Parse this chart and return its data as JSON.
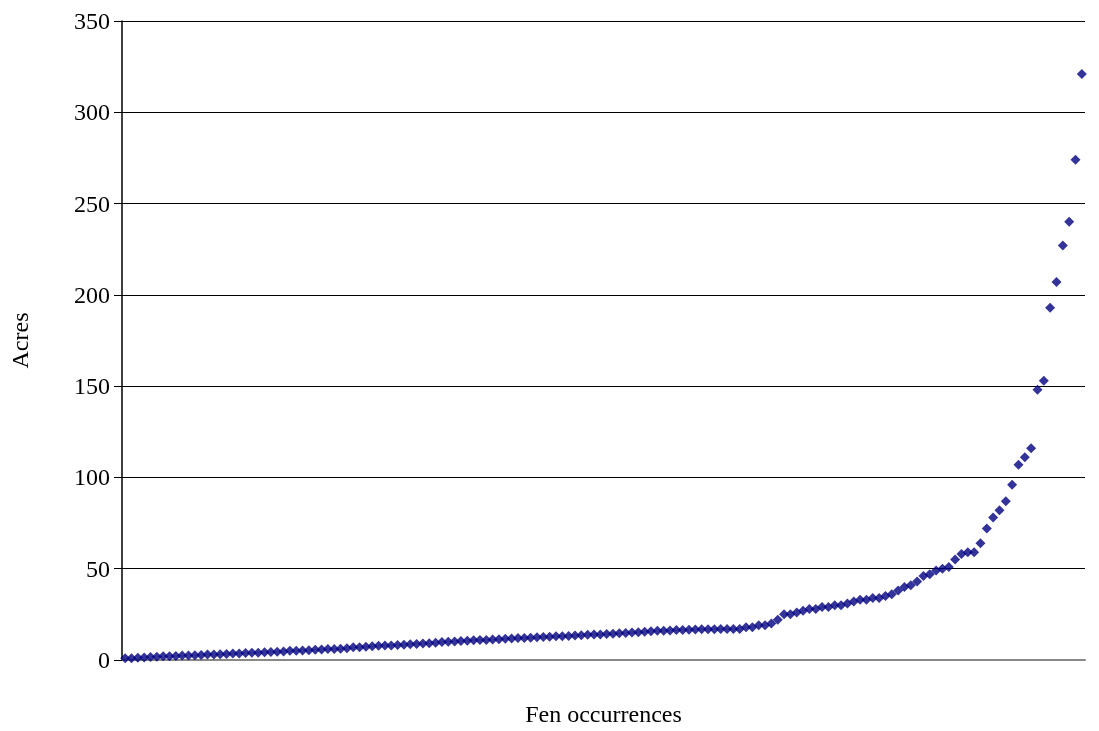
{
  "chart_data": {
    "type": "scatter",
    "xlabel": "Fen occurrences",
    "ylabel": "Acres",
    "categories": [
      null,
      null,
      null,
      null,
      null,
      null,
      null,
      null,
      null,
      null,
      null,
      null,
      null,
      null,
      null,
      null,
      null,
      null,
      null,
      null,
      null,
      null,
      null,
      null,
      null,
      null,
      null,
      null,
      null,
      null,
      null,
      null,
      null,
      null,
      null,
      null,
      null,
      null,
      null,
      null,
      null,
      null,
      null,
      null,
      null,
      null,
      null,
      null,
      null,
      null,
      null,
      null,
      null,
      null,
      null,
      null,
      null,
      null,
      null,
      null,
      null,
      null,
      null,
      null,
      null,
      null,
      null,
      null,
      null,
      null,
      null,
      null,
      null,
      null,
      null,
      null,
      null,
      null,
      null,
      null,
      null,
      null,
      null,
      null,
      null,
      null,
      null,
      null,
      null,
      null,
      null,
      null,
      null,
      null,
      null,
      null,
      null,
      null,
      null,
      null,
      null,
      null,
      null,
      null,
      null,
      null,
      null,
      null,
      null,
      null,
      null,
      null,
      null,
      null,
      null,
      null,
      null,
      null,
      null,
      null,
      null,
      null,
      null,
      null,
      null,
      null,
      null,
      null,
      null,
      null,
      null,
      null,
      null,
      null,
      null,
      null,
      null,
      null,
      null,
      null,
      null,
      null,
      null,
      null,
      null,
      null,
      null,
      null,
      null,
      null,
      null,
      null
    ],
    "series": [
      {
        "color": "#000080",
        "values": [
          1,
          1,
          1.2,
          1.4,
          1.6,
          1.8,
          2,
          2,
          2.2,
          2.4,
          2.5,
          2.6,
          2.8,
          3,
          3,
          3.2,
          3.3,
          3.5,
          3.6,
          3.8,
          4,
          4,
          4.2,
          4.4,
          4.5,
          4.7,
          5,
          5,
          5.2,
          5.4,
          5.6,
          5.8,
          6,
          6,
          6.2,
          6.5,
          7,
          7,
          7.2,
          7.5,
          7.8,
          8,
          8,
          8.2,
          8.4,
          8.6,
          8.8,
          9,
          9.2,
          9.5,
          9.8,
          10,
          10.2,
          10.4,
          10.6,
          10.8,
          11,
          11,
          11.2,
          11.4,
          11.6,
          11.8,
          12,
          12,
          12.2,
          12.4,
          12.6,
          12.8,
          13,
          13,
          13.2,
          13.4,
          13.6,
          13.8,
          14,
          14,
          14.2,
          14.4,
          14.6,
          14.8,
          15,
          15.2,
          15.5,
          15.8,
          16,
          16,
          16.2,
          16.4,
          16.5,
          16.6,
          16.7,
          16.8,
          16.8,
          16.9,
          17,
          17,
          17,
          17,
          18,
          18,
          19,
          19,
          20,
          22,
          25,
          25,
          26,
          27,
          28,
          28,
          29,
          29,
          30,
          30,
          31,
          32,
          33,
          33,
          34,
          34,
          35,
          36,
          38,
          40,
          41,
          43,
          46,
          47,
          49,
          50,
          51,
          55,
          58,
          59,
          59,
          64,
          72,
          78,
          82,
          87,
          96,
          107,
          111,
          116,
          148,
          153,
          193,
          207,
          227,
          240,
          274,
          321
        ]
      }
    ],
    "ylim": [
      0,
      350
    ],
    "yticks": [
      0,
      50,
      100,
      150,
      200,
      250,
      300,
      350
    ],
    "grid": "y",
    "marker": "diamond",
    "tick_labels": "y"
  }
}
